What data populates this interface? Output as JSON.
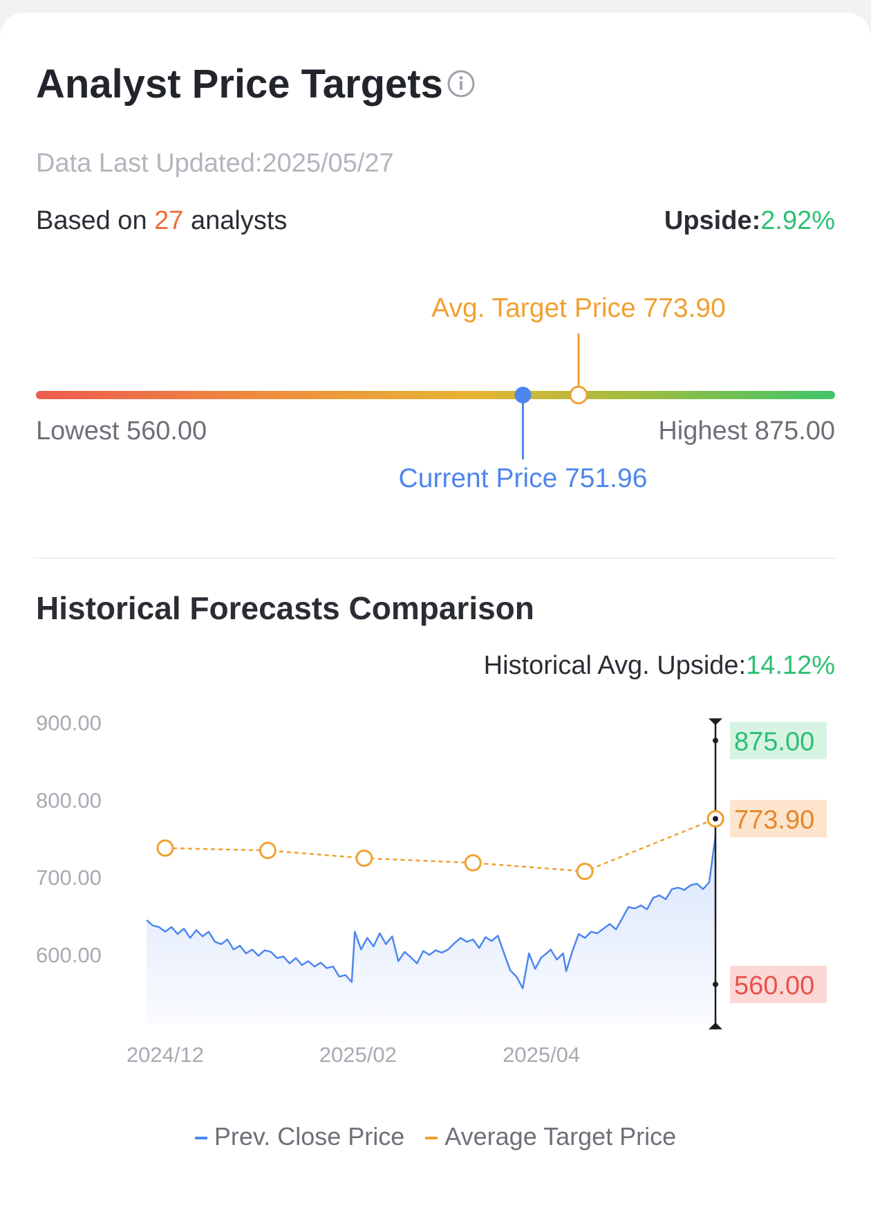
{
  "header": {
    "title": "Analyst Price Targets",
    "updated": "Data Last Updated:2025/05/27",
    "based_prefix": "Based on",
    "analyst_count": "27",
    "based_suffix": "analysts",
    "upside_label": "Upside:",
    "upside_value": "2.92%"
  },
  "range": {
    "avg_label": "Avg. Target Price 773.90",
    "current_label": "Current Price 751.96",
    "lowest_label": "Lowest 560.00",
    "highest_label": "Highest 875.00",
    "low": 560.0,
    "high": 875.0,
    "current": 751.96,
    "average": 773.9
  },
  "history": {
    "title": "Historical Forecasts Comparison",
    "upside_label": "Historical Avg. Upside:",
    "upside_value": "14.12%"
  },
  "colors": {
    "prev_close": "#4d86ee",
    "avg_target": "#f0a030",
    "high": "#2bbf73",
    "low": "#e4524c"
  },
  "chart_data": {
    "type": "line",
    "y_ticks": [
      "900.00",
      "800.00",
      "700.00",
      "600.00"
    ],
    "ylim": [
      500,
      920
    ],
    "x_ticks": [
      "2024/12",
      "2025/02",
      "2025/04"
    ],
    "x_tick_dates": [
      "2024-12-01",
      "2025-02-01",
      "2025-04-01"
    ],
    "xlim": [
      "2024-11-25",
      "2025-05-27"
    ],
    "grid": false,
    "legend_position": "bottom",
    "series": [
      {
        "name": "Prev. Close Price",
        "x": [
          "2024-11-25",
          "2024-11-27",
          "2024-11-29",
          "2024-12-01",
          "2024-12-03",
          "2024-12-05",
          "2024-12-07",
          "2024-12-09",
          "2024-12-11",
          "2024-12-13",
          "2024-12-15",
          "2024-12-17",
          "2024-12-19",
          "2024-12-21",
          "2024-12-23",
          "2024-12-25",
          "2024-12-27",
          "2024-12-29",
          "2024-12-31",
          "2025-01-02",
          "2025-01-04",
          "2025-01-06",
          "2025-01-08",
          "2025-01-10",
          "2025-01-12",
          "2025-01-14",
          "2025-01-16",
          "2025-01-18",
          "2025-01-20",
          "2025-01-22",
          "2025-01-24",
          "2025-01-26",
          "2025-01-28",
          "2025-01-30",
          "2025-01-31",
          "2025-02-02",
          "2025-02-04",
          "2025-02-06",
          "2025-02-08",
          "2025-02-10",
          "2025-02-12",
          "2025-02-14",
          "2025-02-16",
          "2025-02-18",
          "2025-02-20",
          "2025-02-22",
          "2025-02-24",
          "2025-02-26",
          "2025-02-28",
          "2025-03-02",
          "2025-03-04",
          "2025-03-06",
          "2025-03-08",
          "2025-03-10",
          "2025-03-12",
          "2025-03-14",
          "2025-03-16",
          "2025-03-18",
          "2025-03-20",
          "2025-03-22",
          "2025-03-24",
          "2025-03-26",
          "2025-03-28",
          "2025-03-30",
          "2025-04-01",
          "2025-04-03",
          "2025-04-04",
          "2025-04-06",
          "2025-04-08",
          "2025-04-09",
          "2025-04-11",
          "2025-04-13",
          "2025-04-15",
          "2025-04-17",
          "2025-04-19",
          "2025-04-21",
          "2025-04-23",
          "2025-04-25",
          "2025-04-27",
          "2025-04-29",
          "2025-05-01",
          "2025-05-03",
          "2025-05-05",
          "2025-05-07",
          "2025-05-09",
          "2025-05-11",
          "2025-05-13",
          "2025-05-15",
          "2025-05-17",
          "2025-05-19",
          "2025-05-21",
          "2025-05-23",
          "2025-05-25",
          "2025-05-27"
        ],
        "y": [
          643,
          636,
          634,
          628,
          634,
          625,
          632,
          620,
          630,
          622,
          628,
          615,
          612,
          618,
          605,
          610,
          600,
          605,
          597,
          604,
          602,
          594,
          596,
          587,
          594,
          585,
          590,
          583,
          588,
          581,
          583,
          570,
          572,
          563,
          628,
          605,
          620,
          609,
          626,
          612,
          622,
          590,
          602,
          595,
          587,
          603,
          598,
          604,
          601,
          605,
          613,
          620,
          615,
          618,
          607,
          621,
          616,
          623,
          600,
          578,
          570,
          555,
          600,
          580,
          595,
          601,
          605,
          592,
          600,
          577,
          603,
          625,
          620,
          628,
          626,
          632,
          638,
          631,
          645,
          660,
          658,
          662,
          657,
          672,
          675,
          670,
          683,
          685,
          682,
          688,
          690,
          683,
          692,
          752
        ]
      },
      {
        "name": "Average Target Price",
        "x": [
          "2024-12-01",
          "2025-01-03",
          "2025-02-03",
          "2025-03-10",
          "2025-04-15",
          "2025-05-27"
        ],
        "y": [
          736,
          733,
          723,
          717,
          706,
          773.9
        ]
      }
    ],
    "range_markers": [
      {
        "label": "875.00",
        "value": 875.0
      },
      {
        "label": "773.90",
        "value": 773.9
      },
      {
        "label": "560.00",
        "value": 560.0
      }
    ]
  },
  "legend": {
    "prev_close": "Prev. Close Price",
    "avg_target": "Average Target Price"
  }
}
